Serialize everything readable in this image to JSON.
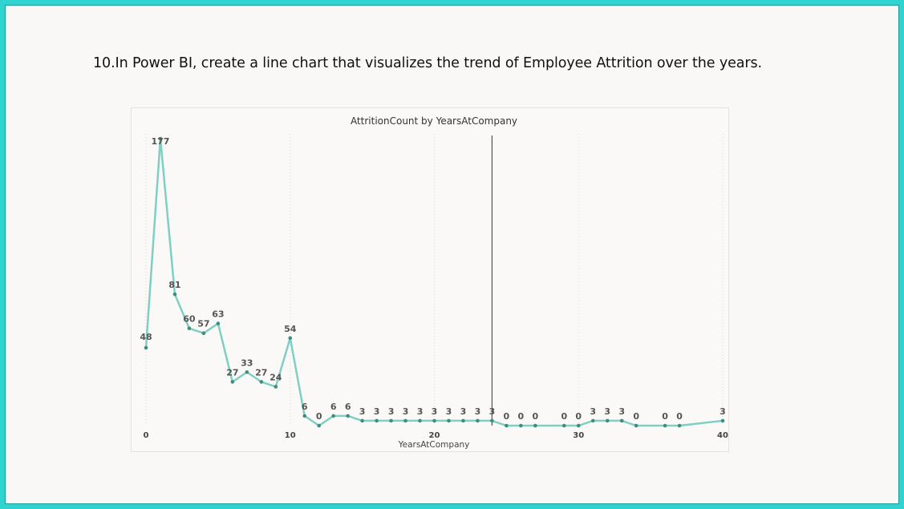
{
  "question": "10.In Power BI, create a line chart that visualizes the trend of Employee Attrition over the years.",
  "colors": {
    "slide_border": "#2fd3cf",
    "line": "#7fcfc3",
    "marker": "#3f8c80",
    "reference_line": "#555555"
  },
  "chart_data": {
    "type": "line",
    "title": "AttritionCount by YearsAtCompany",
    "xlabel": "YearsAtCompany",
    "ylabel": "",
    "xlim": [
      0,
      40
    ],
    "ylim": [
      0,
      177
    ],
    "x_ticks": [
      0,
      10,
      20,
      30,
      40
    ],
    "grid": "vertical dotted",
    "reference_line_x": 24,
    "series": [
      {
        "x": [
          0,
          1,
          2,
          3,
          4,
          5,
          6,
          7,
          8,
          9,
          10,
          11,
          12,
          13,
          14,
          15,
          16,
          17,
          18,
          19,
          20,
          21,
          22,
          23,
          24,
          25,
          26,
          27,
          29,
          30,
          31,
          32,
          33,
          34,
          36,
          37,
          40
        ],
        "values": [
          48,
          177,
          81,
          60,
          57,
          63,
          27,
          33,
          27,
          24,
          54,
          6,
          0,
          6,
          6,
          3,
          3,
          3,
          3,
          3,
          3,
          3,
          3,
          3,
          3,
          0,
          0,
          0,
          0,
          0,
          3,
          3,
          3,
          0,
          0,
          0,
          3
        ]
      }
    ]
  }
}
